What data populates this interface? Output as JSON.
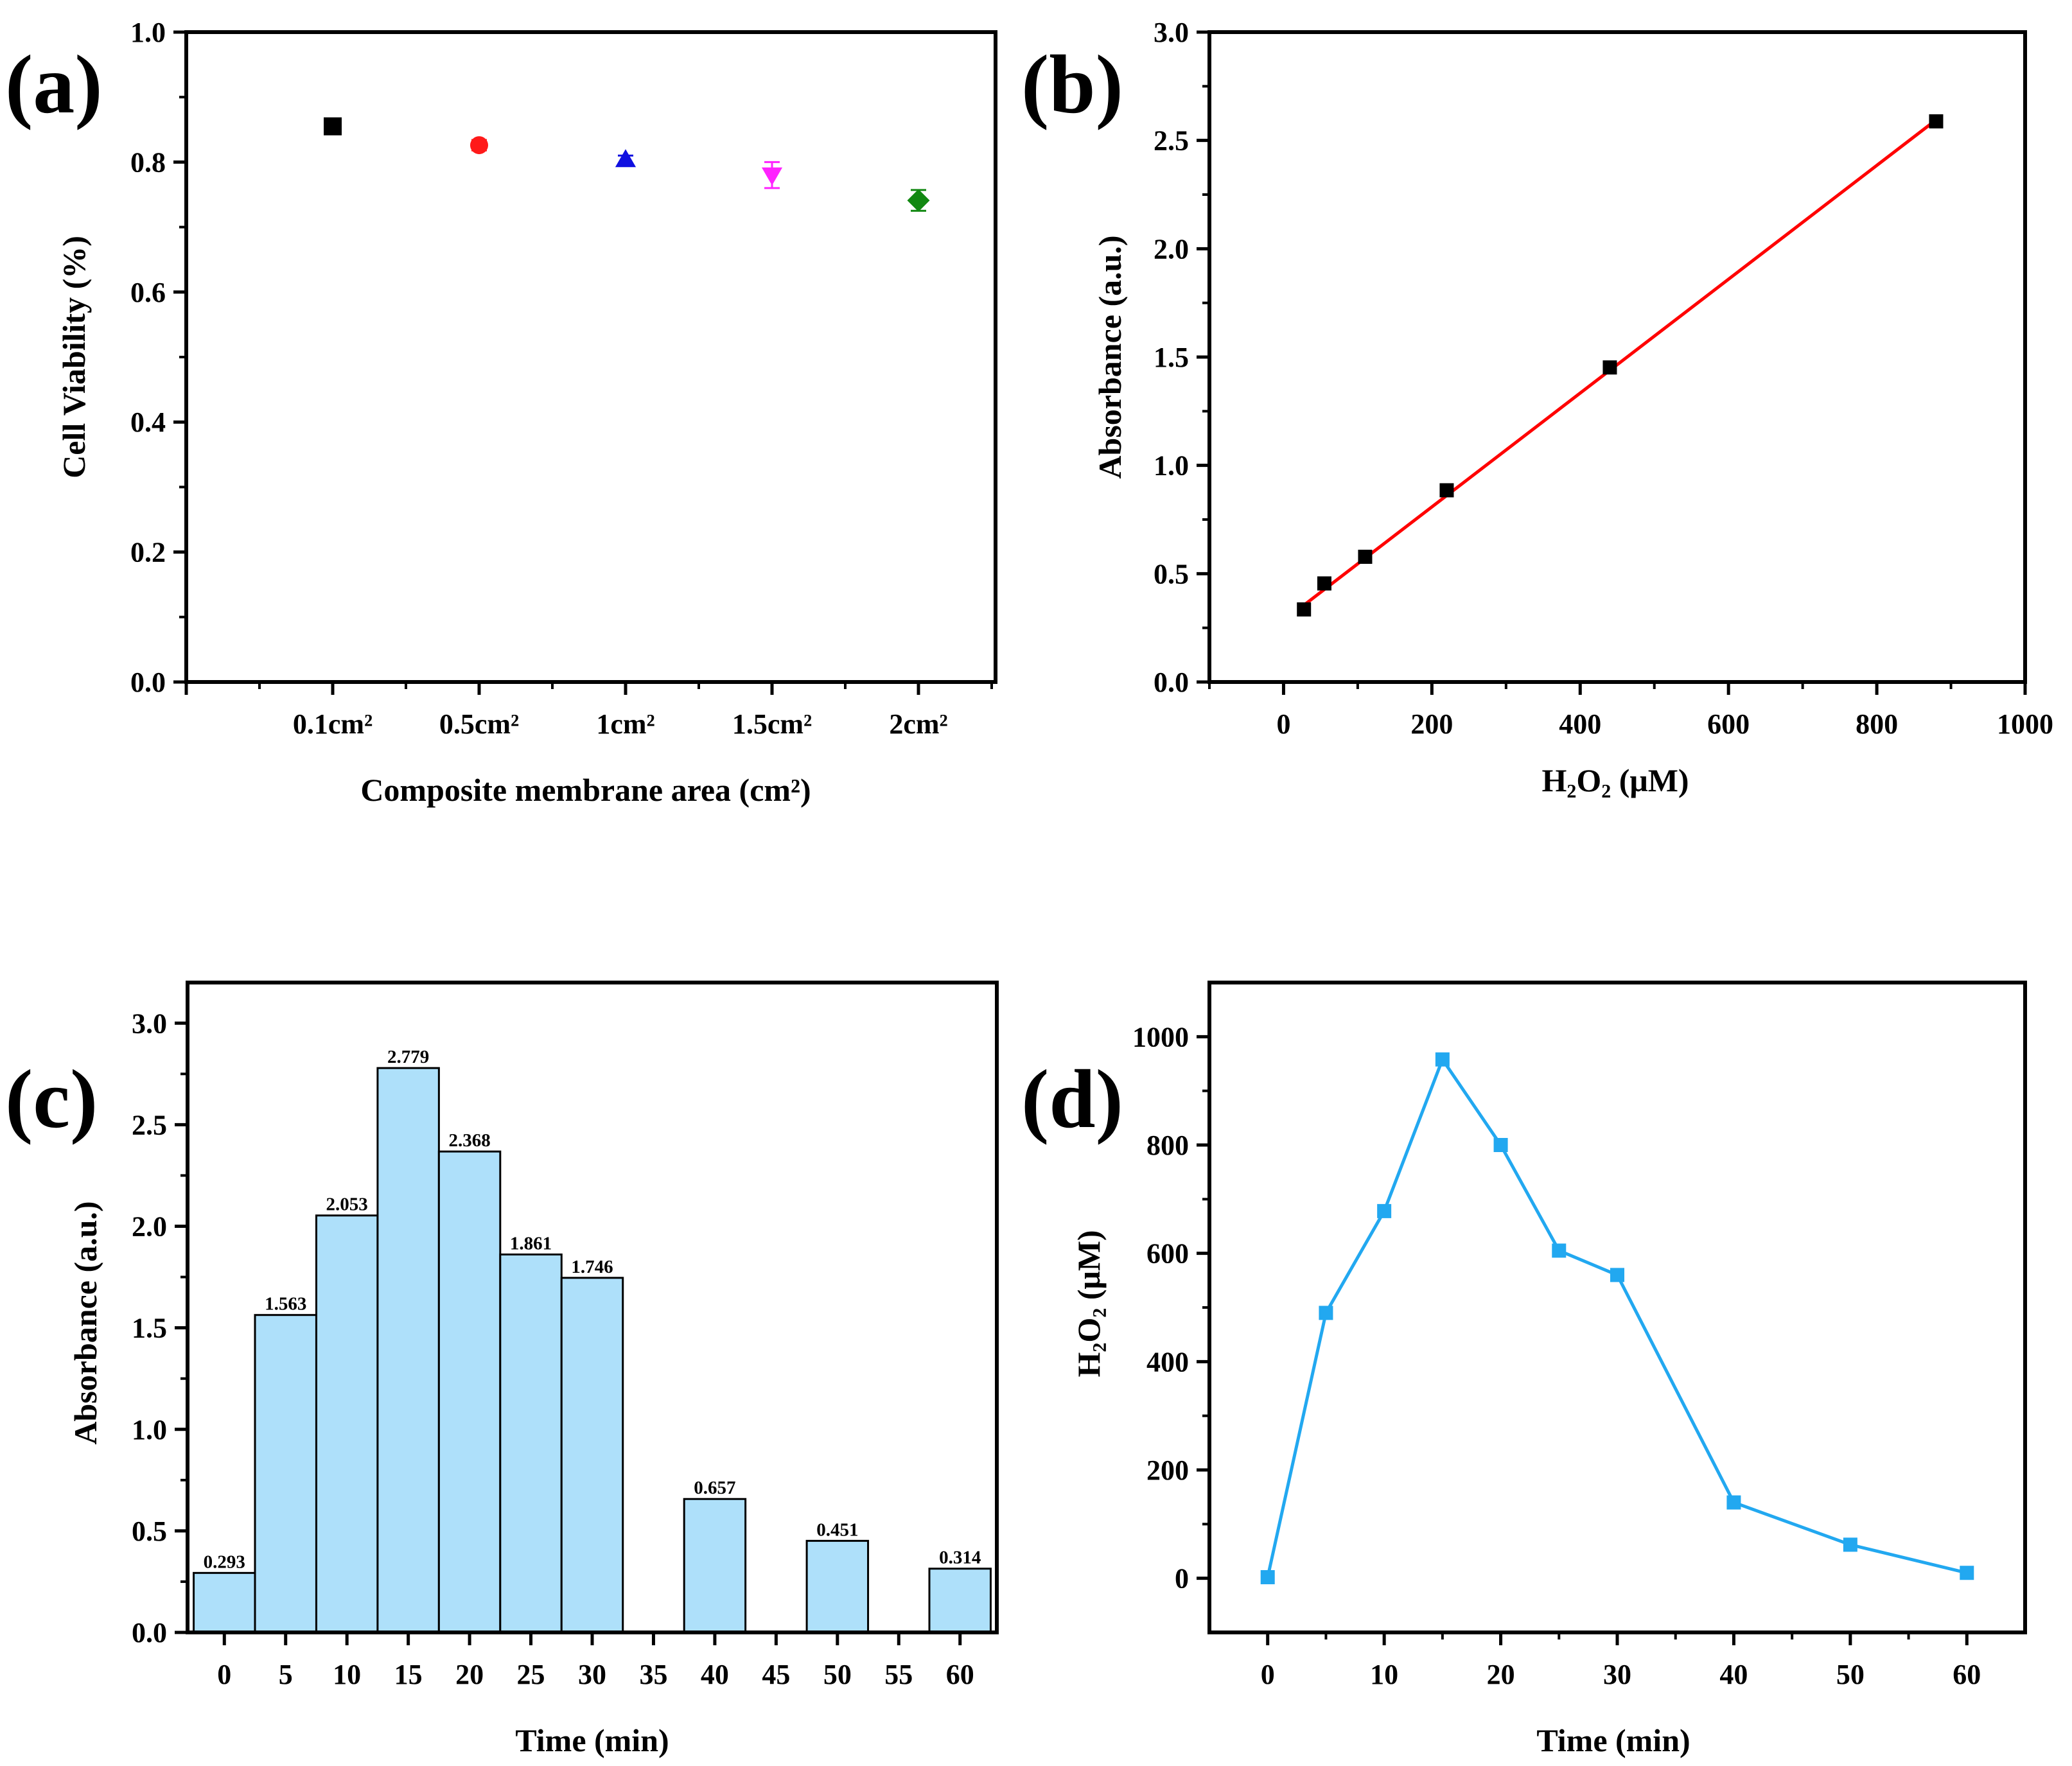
{
  "panels": {
    "a": {
      "letter": "(a)"
    },
    "b": {
      "letter": "(b)"
    },
    "c": {
      "letter": "(c)"
    },
    "d": {
      "letter": "(d)"
    }
  },
  "chart_data": [
    {
      "id": "a",
      "type": "scatter",
      "title": "",
      "xlabel": "Composite membrane area (cm²)",
      "ylabel": "Cell Viability (%)",
      "categories": [
        "0.1cm²",
        "0.5cm²",
        "1cm²",
        "1.5cm²",
        "2cm²"
      ],
      "values": [
        0.855,
        0.826,
        0.804,
        0.78,
        0.741
      ],
      "errors": [
        0.006,
        0.008,
        0.006,
        0.02,
        0.016
      ],
      "markers": [
        "square",
        "circle",
        "triangle-up",
        "triangle-down",
        "diamond"
      ],
      "colors": [
        "#000000",
        "#ff1a1a",
        "#1010e0",
        "#ff22ff",
        "#118811"
      ],
      "ylim": [
        0.0,
        1.0
      ],
      "yticks": [
        "0.0",
        "0.2",
        "0.4",
        "0.6",
        "0.8",
        "1.0"
      ]
    },
    {
      "id": "b",
      "type": "scatter",
      "title": "",
      "xlabel": "H₂O₂ (μM)",
      "ylabel": "Absorbance (a.u.)",
      "x": [
        27.5,
        55,
        110,
        220,
        440,
        880
      ],
      "y": [
        0.335,
        0.455,
        0.578,
        0.885,
        1.452,
        2.588
      ],
      "fit_line": {
        "x": [
          27.5,
          880
        ],
        "y": [
          0.355,
          2.595
        ],
        "color": "#ff0000"
      },
      "xlim": [
        -100,
        1000
      ],
      "ylim": [
        0.0,
        3.0
      ],
      "xticks": [
        "0",
        "200",
        "400",
        "600",
        "800",
        "1000"
      ],
      "yticks": [
        "0.0",
        "0.5",
        "1.0",
        "1.5",
        "2.0",
        "2.5",
        "3.0"
      ]
    },
    {
      "id": "c",
      "type": "bar",
      "title": "",
      "xlabel": "Time (min)",
      "ylabel": "Absorbance (a.u.)",
      "x": [
        0,
        5,
        10,
        15,
        20,
        25,
        30,
        40,
        50,
        60
      ],
      "values": [
        0.293,
        1.563,
        2.053,
        2.779,
        2.368,
        1.861,
        1.746,
        0.657,
        0.451,
        0.314
      ],
      "labels": [
        "0.293",
        "1.563",
        "2.053",
        "2.779",
        "2.368",
        "1.861",
        "1.746",
        "0.657",
        "0.451",
        "0.314"
      ],
      "color": "#aee0fa",
      "xlim": [
        -3,
        63
      ],
      "ylim": [
        0.0,
        3.2
      ],
      "xticks": [
        "0",
        "5",
        "10",
        "15",
        "20",
        "25",
        "30",
        "35",
        "40",
        "45",
        "50",
        "55",
        "60"
      ],
      "yticks": [
        "0.0",
        "0.5",
        "1.0",
        "1.5",
        "2.0",
        "2.5",
        "3.0"
      ]
    },
    {
      "id": "d",
      "type": "line",
      "title": "",
      "xlabel": "Time (min)",
      "ylabel": "H₂O₂ (μM)",
      "x": [
        0,
        5,
        10,
        15,
        20,
        25,
        30,
        40,
        50,
        60
      ],
      "y": [
        2,
        490,
        678,
        958,
        800,
        605,
        560,
        140,
        62,
        10
      ],
      "color": "#22a8f0",
      "xlim": [
        -5,
        65
      ],
      "ylim": [
        -100,
        1100
      ],
      "xticks": [
        "0",
        "10",
        "20",
        "30",
        "40",
        "50",
        "60"
      ],
      "yticks": [
        "0",
        "200",
        "400",
        "600",
        "800",
        "1000"
      ]
    }
  ]
}
